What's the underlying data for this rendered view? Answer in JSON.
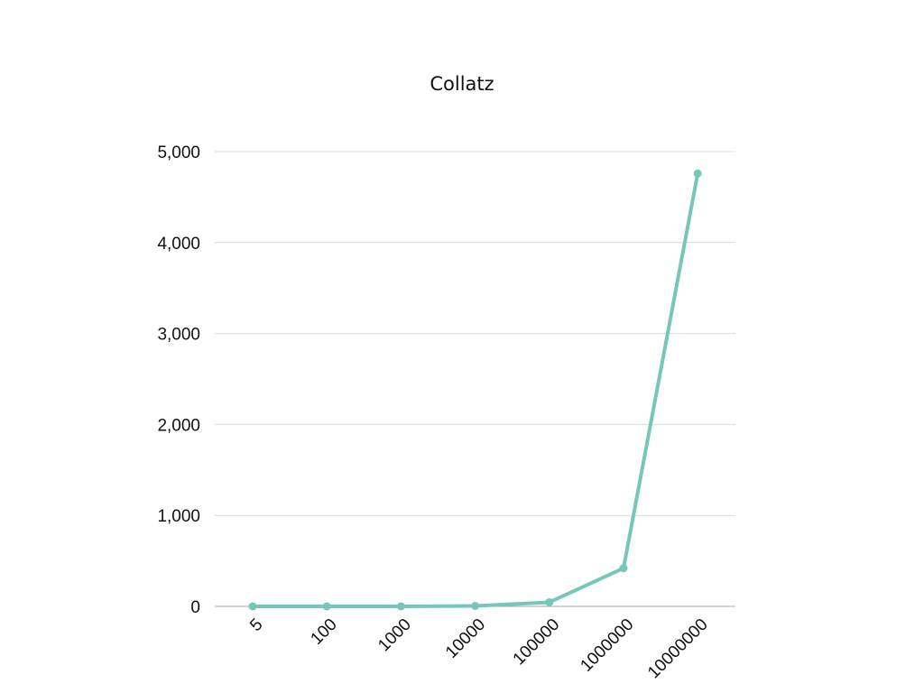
{
  "chart_data": {
    "type": "line",
    "title": "Collatz",
    "xlabel": "",
    "ylabel": "",
    "categories": [
      "5",
      "100",
      "1000",
      "10000",
      "100000",
      "1000000",
      "10000000"
    ],
    "series": [
      {
        "values": [
          0,
          0,
          0,
          5,
          45,
          420,
          4760
        ],
        "color": "#76c7b7"
      }
    ],
    "ylim": [
      0,
      5000
    ],
    "yticks": [
      0,
      1000,
      2000,
      3000,
      4000,
      5000
    ],
    "ytick_labels": [
      "0",
      "1,000",
      "2,000",
      "3,000",
      "4,000",
      "5,000"
    ],
    "grid": true,
    "legend": "none"
  }
}
